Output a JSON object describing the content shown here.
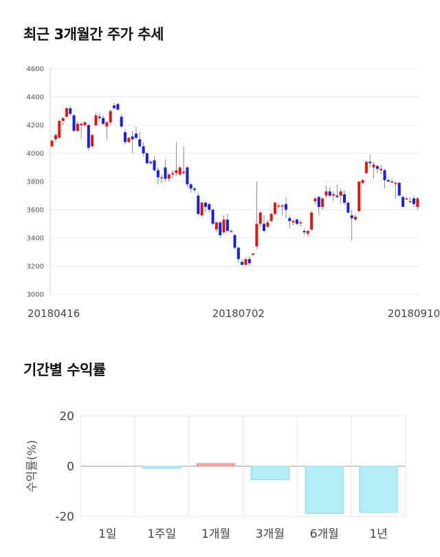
{
  "titles": {
    "price": "최근 3개월간 주가 추세",
    "returns": "기간별 수익률"
  },
  "colors": {
    "up": "#d41b1b",
    "down": "#1f1fcc",
    "grid": "#e3e3e3",
    "bar_positive": "#f4a6a6",
    "bar_negative": "#b3ecf4"
  },
  "chart_data": [
    {
      "type": "candlestick",
      "title": "최근 3개월간 주가 추세",
      "ylim": [
        3000,
        4600
      ],
      "yticks": [
        3000,
        3200,
        3400,
        3600,
        3800,
        4000,
        4200,
        4400,
        4600
      ],
      "xtick_labels": [
        {
          "index": 0,
          "label": "20180416"
        },
        {
          "index": 51,
          "label": "20180702"
        },
        {
          "index": 99,
          "label": "20180910"
        }
      ],
      "candles": [
        [
          4050,
          4100,
          4040,
          4090
        ],
        [
          4100,
          4140,
          4080,
          4130
        ],
        [
          4110,
          4240,
          4100,
          4230
        ],
        [
          4230,
          4260,
          4200,
          4250
        ],
        [
          4260,
          4330,
          4250,
          4320
        ],
        [
          4320,
          4340,
          4270,
          4280
        ],
        [
          4270,
          4280,
          4150,
          4160
        ],
        [
          4160,
          4230,
          4150,
          4210
        ],
        [
          4200,
          4220,
          4100,
          4210
        ],
        [
          4200,
          4230,
          4190,
          4220
        ],
        [
          4200,
          4210,
          4020,
          4040
        ],
        [
          4050,
          4140,
          4040,
          4130
        ],
        [
          4200,
          4290,
          4190,
          4270
        ],
        [
          4260,
          4290,
          4230,
          4250
        ],
        [
          4250,
          4270,
          4200,
          4210
        ],
        [
          4190,
          4230,
          4100,
          4220
        ],
        [
          4220,
          4310,
          4200,
          4300
        ],
        [
          4340,
          4360,
          4310,
          4320
        ],
        [
          4350,
          4360,
          4300,
          4310
        ],
        [
          4260,
          4280,
          4180,
          4190
        ],
        [
          4150,
          4170,
          4060,
          4080
        ],
        [
          4080,
          4120,
          4070,
          4110
        ],
        [
          4120,
          4160,
          4000,
          4100
        ],
        [
          4140,
          4190,
          4100,
          4110
        ],
        [
          4100,
          4150,
          4040,
          4050
        ],
        [
          4050,
          4080,
          3980,
          4000
        ],
        [
          4000,
          4010,
          3920,
          3930
        ],
        [
          3940,
          3950,
          3920,
          3930
        ],
        [
          3950,
          3980,
          3870,
          3880
        ],
        [
          3880,
          3900,
          3780,
          3830
        ],
        [
          3830,
          3850,
          3790,
          3830
        ],
        [
          3900,
          3960,
          3800,
          3820
        ],
        [
          3820,
          3860,
          3800,
          3850
        ],
        [
          3850,
          3880,
          3820,
          3860
        ],
        [
          3860,
          4080,
          3840,
          3880
        ],
        [
          3850,
          3910,
          3840,
          3900
        ],
        [
          3860,
          4050,
          3850,
          3870
        ],
        [
          3900,
          3910,
          3760,
          3780
        ],
        [
          3780,
          3790,
          3720,
          3750
        ],
        [
          3750,
          3760,
          3720,
          3740
        ],
        [
          3700,
          3720,
          3560,
          3570
        ],
        [
          3560,
          3660,
          3550,
          3650
        ],
        [
          3650,
          3660,
          3580,
          3620
        ],
        [
          3640,
          3650,
          3580,
          3600
        ],
        [
          3600,
          3610,
          3490,
          3500
        ],
        [
          3460,
          3520,
          3440,
          3510
        ],
        [
          3510,
          3520,
          3400,
          3420
        ],
        [
          3440,
          3560,
          3430,
          3530
        ],
        [
          3530,
          3570,
          3440,
          3450
        ],
        [
          3450,
          3460,
          3440,
          3450
        ],
        [
          3420,
          3430,
          3320,
          3330
        ],
        [
          3330,
          3340,
          3220,
          3250
        ],
        [
          3230,
          3250,
          3200,
          3210
        ],
        [
          3210,
          3260,
          3200,
          3250
        ],
        [
          3250,
          3270,
          3200,
          3220
        ],
        [
          3280,
          3290,
          3270,
          3290
        ],
        [
          3340,
          3800,
          3320,
          3500
        ],
        [
          3500,
          3590,
          3480,
          3580
        ],
        [
          3500,
          3560,
          3440,
          3450
        ],
        [
          3480,
          3530,
          3470,
          3510
        ],
        [
          3520,
          3580,
          3510,
          3570
        ],
        [
          3570,
          3660,
          3560,
          3650
        ],
        [
          3630,
          3650,
          3610,
          3630
        ],
        [
          3630,
          3640,
          3560,
          3630
        ],
        [
          3640,
          3690,
          3540,
          3600
        ],
        [
          3540,
          3560,
          3470,
          3520
        ],
        [
          3510,
          3530,
          3490,
          3520
        ],
        [
          3530,
          3540,
          3490,
          3500
        ],
        [
          3510,
          3530,
          3480,
          3510
        ],
        [
          3450,
          3470,
          3420,
          3440
        ],
        [
          3430,
          3460,
          3410,
          3450
        ],
        [
          3460,
          3590,
          3450,
          3580
        ],
        [
          3660,
          3690,
          3640,
          3680
        ],
        [
          3690,
          3700,
          3560,
          3620
        ],
        [
          3620,
          3690,
          3600,
          3680
        ],
        [
          3700,
          3770,
          3680,
          3730
        ],
        [
          3730,
          3760,
          3690,
          3700
        ],
        [
          3700,
          3730,
          3660,
          3710
        ],
        [
          3700,
          3780,
          3680,
          3690
        ],
        [
          3700,
          3750,
          3640,
          3730
        ],
        [
          3710,
          3740,
          3630,
          3650
        ],
        [
          3650,
          3660,
          3570,
          3580
        ],
        [
          3560,
          3600,
          3380,
          3540
        ],
        [
          3530,
          3570,
          3520,
          3550
        ],
        [
          3590,
          3790,
          3580,
          3800
        ],
        [
          3790,
          3820,
          3780,
          3810
        ],
        [
          3860,
          3950,
          3850,
          3940
        ],
        [
          3940,
          3990,
          3900,
          3930
        ],
        [
          3900,
          3940,
          3820,
          3920
        ],
        [
          3910,
          3920,
          3860,
          3890
        ],
        [
          3880,
          3920,
          3850,
          3890
        ],
        [
          3880,
          3890,
          3750,
          3810
        ],
        [
          3810,
          3820,
          3800,
          3800
        ],
        [
          3800,
          3820,
          3790,
          3800
        ],
        [
          3790,
          3800,
          3680,
          3790
        ],
        [
          3790,
          3800,
          3700,
          3700
        ],
        [
          3690,
          3700,
          3620,
          3620
        ],
        [
          3680,
          3690,
          3670,
          3680
        ],
        [
          3660,
          3690,
          3650,
          3660
        ],
        [
          3680,
          3700,
          3620,
          3640
        ],
        [
          3620,
          3690,
          3600,
          3680
        ]
      ]
    },
    {
      "type": "bar",
      "title": "기간별 수익률",
      "ylabel": "수익률(%)",
      "categories": [
        "1일",
        "1주일",
        "1개월",
        "3개월",
        "6개월",
        "1년"
      ],
      "values": [
        0,
        -0.8,
        1.1,
        -5.4,
        -18.8,
        -18.4
      ],
      "ylim": [
        -20,
        20
      ],
      "yticks": [
        -20,
        0,
        20
      ]
    }
  ]
}
